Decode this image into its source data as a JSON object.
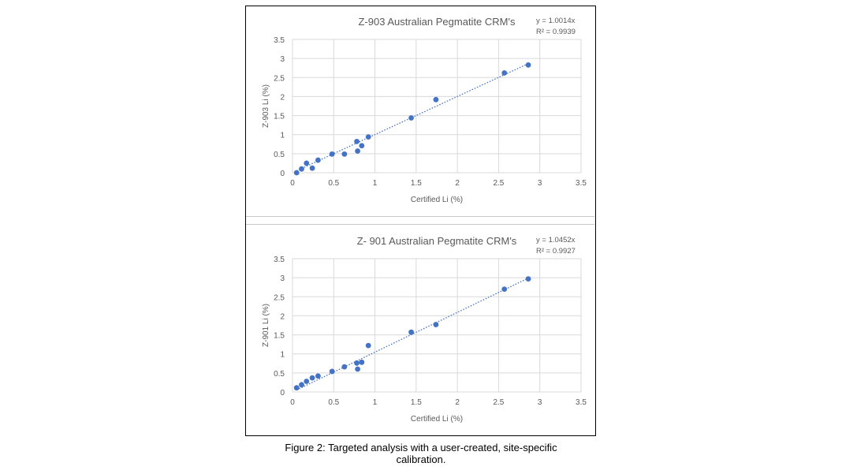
{
  "caption": "Figure 2: Targeted analysis with a user-created, site-specific calibration.",
  "chart_data": [
    {
      "type": "scatter",
      "title": "Z-903 Australian Pegmatite CRM's",
      "xlabel": "Certified Li (%)",
      "ylabel": "Z-903 Li (%)",
      "xlim": [
        0,
        3.5
      ],
      "ylim": [
        0,
        3.5
      ],
      "xticks": [
        "0",
        "0.5",
        "1",
        "1.5",
        "2",
        "2.5",
        "3",
        "3.5"
      ],
      "yticks": [
        "0",
        "0.5",
        "1",
        "1.5",
        "2",
        "2.5",
        "3",
        "3.5"
      ],
      "grid": true,
      "marker_color": "#4472C4",
      "trendline": {
        "equation": "y = 1.0014x",
        "r2": "R² = 0.9939",
        "slope": 1.0014
      },
      "x": [
        0.05,
        0.11,
        0.17,
        0.24,
        0.31,
        0.48,
        0.63,
        0.78,
        0.79,
        0.84,
        0.92,
        1.44,
        1.74,
        2.57,
        2.86
      ],
      "y": [
        0.0,
        0.1,
        0.25,
        0.12,
        0.33,
        0.49,
        0.49,
        0.82,
        0.57,
        0.71,
        0.94,
        1.44,
        1.92,
        2.62,
        2.83
      ]
    },
    {
      "type": "scatter",
      "title": "Z- 901 Australian Pegmatite CRM's",
      "xlabel": "Certified Li (%)",
      "ylabel": "Z-901 Li (%)",
      "xlim": [
        0,
        3.5
      ],
      "ylim": [
        0,
        3.5
      ],
      "xticks": [
        "0",
        "0.5",
        "1",
        "1.5",
        "2",
        "2.5",
        "3",
        "3.5"
      ],
      "yticks": [
        "0",
        "0.5",
        "1",
        "1.5",
        "2",
        "2.5",
        "3",
        "3.5"
      ],
      "grid": true,
      "marker_color": "#4472C4",
      "trendline": {
        "equation": "y = 1.0452x",
        "r2": "R² = 0.9927",
        "slope": 1.0452
      },
      "x": [
        0.05,
        0.11,
        0.17,
        0.24,
        0.31,
        0.48,
        0.63,
        0.78,
        0.79,
        0.84,
        0.92,
        1.44,
        1.74,
        2.57,
        2.86
      ],
      "y": [
        0.11,
        0.19,
        0.28,
        0.37,
        0.42,
        0.54,
        0.66,
        0.76,
        0.6,
        0.78,
        1.22,
        1.57,
        1.77,
        2.7,
        2.97
      ]
    }
  ]
}
